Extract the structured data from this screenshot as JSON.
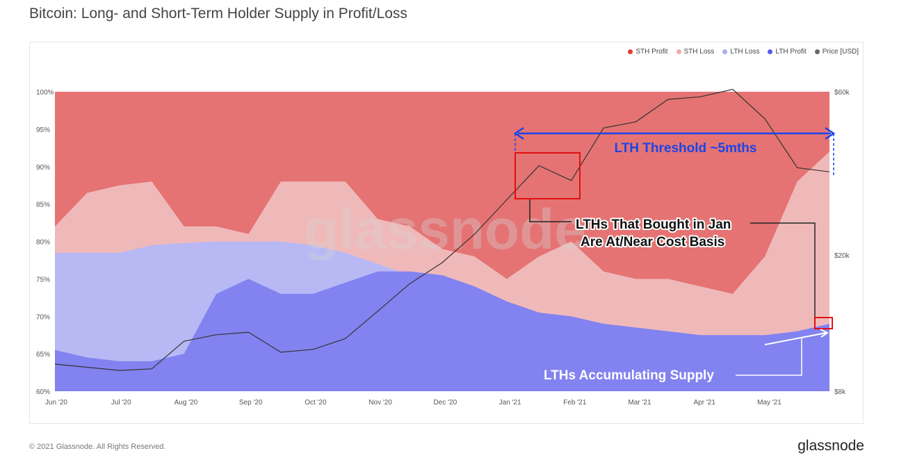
{
  "page": {
    "title": "Bitcoin: Long- and Short-Term Holder Supply in Profit/Loss",
    "copyright": "© 2021 Glassnode. All Rights Reserved.",
    "logo": "glassnode"
  },
  "colors": {
    "sth_profit": "#e57373",
    "sth_loss": "#f0b9b9",
    "lth_loss": "#b8b8f5",
    "lth_profit": "#8282f0",
    "price": "#333333",
    "threshold": "#1a44e8",
    "box": "#e01010"
  },
  "chart_data": {
    "type": "area",
    "stacked_percent": true,
    "x_tick_labels": [
      "Jun '20",
      "Jul '20",
      "Aug '20",
      "Sep '20",
      "Oct '20",
      "Nov '20",
      "Dec '20",
      "Jan '21",
      "Feb '21",
      "Mar '21",
      "Apr '21",
      "May '21"
    ],
    "y_left_ticks": [
      "60%",
      "65%",
      "70%",
      "75%",
      "80%",
      "85%",
      "90%",
      "95%",
      "100%"
    ],
    "y_left_range": [
      60,
      100
    ],
    "y_right_ticks": [
      "$8k",
      "$20k",
      "$60k"
    ],
    "y_right_range": [
      8000,
      60000
    ],
    "y_right_scale": "log",
    "legend": [
      "STH Profit",
      "STH Loss",
      "LTH Loss",
      "LTH Profit",
      "Price [USD]"
    ],
    "legend_position": "top-right",
    "x": [
      "Jun '20",
      "mid Jun",
      "Jul '20",
      "mid Jul",
      "Aug '20",
      "mid Aug",
      "Sep '20",
      "mid Sep",
      "Oct '20",
      "mid Oct",
      "Nov '20",
      "mid Nov",
      "Dec '20",
      "mid Dec",
      "Jan '21",
      "mid Jan",
      "Feb '21",
      "mid Feb",
      "Mar '21",
      "mid Mar",
      "Apr '21",
      "mid Apr",
      "May '21",
      "mid May",
      "late May"
    ],
    "series": [
      {
        "name": "LTH Profit",
        "values": [
          65.5,
          64.5,
          64,
          64,
          65,
          73,
          75,
          73,
          73,
          74.5,
          76,
          76,
          75.5,
          74,
          72,
          70.5,
          70,
          69,
          68.5,
          68,
          67.5,
          67.5,
          67.5,
          68,
          69
        ]
      },
      {
        "name": "LTH Loss",
        "values": [
          78.5,
          78.5,
          78.5,
          79.5,
          79.8,
          80,
          80,
          80,
          79.5,
          78.5,
          77,
          75.5,
          75.5,
          74,
          72,
          70.5,
          70,
          69,
          68.5,
          68,
          67.5,
          67.5,
          67.5,
          68,
          69
        ]
      },
      {
        "name": "STH Loss",
        "values": [
          82,
          86.5,
          87.5,
          88,
          82,
          82,
          81,
          88,
          88,
          88,
          83,
          82,
          79,
          78,
          75,
          78,
          80,
          76,
          75,
          75,
          74,
          73,
          78,
          88,
          92
        ]
      },
      {
        "name": "STH Profit",
        "values": [
          100,
          100,
          100,
          100,
          100,
          100,
          100,
          100,
          100,
          100,
          100,
          100,
          100,
          100,
          100,
          100,
          100,
          100,
          100,
          100,
          100,
          100,
          100,
          100,
          100
        ]
      },
      {
        "name": "Price [USD]",
        "values": [
          9600,
          9400,
          9200,
          9300,
          11200,
          11700,
          11900,
          10400,
          10600,
          11400,
          13700,
          16500,
          19000,
          23000,
          29000,
          36500,
          33000,
          47000,
          49000,
          57000,
          58000,
          61000,
          50000,
          36000,
          35000
        ]
      }
    ],
    "annotations": [
      {
        "text": "LTH Threshold ~5mths"
      },
      {
        "text": "LTHs That Bought in Jan"
      },
      {
        "text": "Are At/Near Cost Basis"
      },
      {
        "text": "LTHs Accumulating Supply"
      }
    ],
    "watermark": "glassnode"
  }
}
